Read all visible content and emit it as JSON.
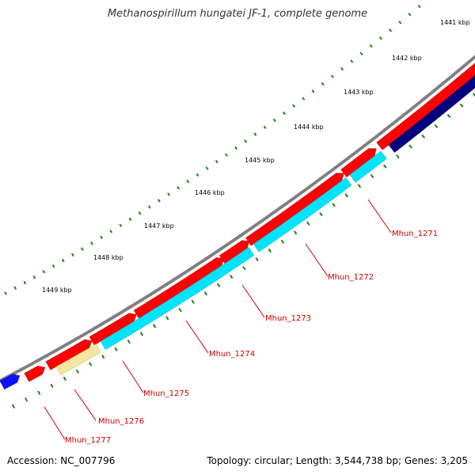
{
  "title": "Methanospirillum hungatei JF-1, complete genome",
  "footer": {
    "accession": "Accession: NC_007796",
    "summary": "Topology: circular; Length: 3,544,738 bp; Genes: 3,205"
  },
  "colors": {
    "forward_gene": "#ff0000",
    "reverse_cds_a": "#00e5ff",
    "reverse_cds_b": "#000080",
    "reverse_other": "#f2e6a0",
    "edge_gene": "#1010ff",
    "backbone": "#808080",
    "tick": "#207f20",
    "gene_label": "#cc0000"
  },
  "scale_labels": [
    {
      "pos_kbp": 1441,
      "label": "1441 kbp"
    },
    {
      "pos_kbp": 1442,
      "label": "1442 kbp"
    },
    {
      "pos_kbp": 1443,
      "label": "1443 kbp"
    },
    {
      "pos_kbp": 1444,
      "label": "1444 kbp"
    },
    {
      "pos_kbp": 1445,
      "label": "1445 kbp"
    },
    {
      "pos_kbp": 1446,
      "label": "1446 kbp"
    },
    {
      "pos_kbp": 1447,
      "label": "1447 kbp"
    },
    {
      "pos_kbp": 1448,
      "label": "1448 kbp"
    },
    {
      "pos_kbp": 1449,
      "label": "1449 kbp"
    }
  ],
  "gene_labels": [
    {
      "name": "Mhun_1271"
    },
    {
      "name": "Mhun_1272"
    },
    {
      "name": "Mhun_1273"
    },
    {
      "name": "Mhun_1274"
    },
    {
      "name": "Mhun_1275"
    },
    {
      "name": "Mhun_1276"
    },
    {
      "name": "Mhun_1277"
    }
  ]
}
